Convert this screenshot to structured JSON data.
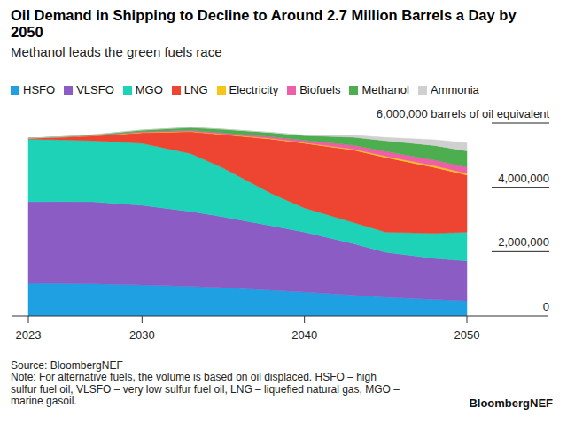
{
  "chart_data": {
    "type": "area",
    "stacked": true,
    "title": "Oil Demand in Shipping to Decline to Around 2.7 Million Barrels a Day by 2050",
    "subtitle": "Methanol leads the green fuels race",
    "source": "Source: BloombergNEF",
    "note": "Note: For alternative fuels, the volume is based on oil displaced. HSFO – high sulfur fuel oil, VLSFO – very low sulfur fuel oil, LNG – liquefied natural gas, MGO – marine gasoil.",
    "brand": "BloombergNEF",
    "x": [
      2023,
      2025,
      2027,
      2030,
      2033,
      2035,
      2038,
      2040,
      2043,
      2045,
      2048,
      2050
    ],
    "xlim": [
      2022,
      2055
    ],
    "xticks": [
      2023,
      2030,
      2040,
      2050
    ],
    "ylim": [
      0,
      6000000
    ],
    "yticks": [
      0,
      {
        "value": 2000000,
        "label": "2,000,000"
      },
      {
        "value": 4000000,
        "label": "4,000,000"
      },
      {
        "value": 6000000,
        "label": "6,000,000 barrels of oil equivalent"
      }
    ],
    "legend": "top",
    "series": [
      {
        "name": "HSFO",
        "color": "#1fa0e3",
        "values": [
          1020000,
          1010000,
          1000000,
          960000,
          920000,
          880000,
          800000,
          740000,
          650000,
          580000,
          510000,
          470000
        ]
      },
      {
        "name": "VLSFO",
        "color": "#8b5cc4",
        "values": [
          2530000,
          2550000,
          2550000,
          2480000,
          2330000,
          2200000,
          2000000,
          1870000,
          1600000,
          1400000,
          1280000,
          1240000
        ]
      },
      {
        "name": "MGO",
        "color": "#1ed2b8",
        "values": [
          1950000,
          1920000,
          1900000,
          1930000,
          1800000,
          1520000,
          1000000,
          750000,
          660000,
          630000,
          780000,
          900000
        ]
      },
      {
        "name": "LNG",
        "color": "#ee4432",
        "values": [
          30000,
          80000,
          150000,
          330000,
          680000,
          1040000,
          1700000,
          2010000,
          2250000,
          2320000,
          2050000,
          1770000
        ]
      },
      {
        "name": "Electricity",
        "color": "#f6c518",
        "values": [
          0,
          0,
          5000,
          10000,
          10000,
          15000,
          20000,
          20000,
          30000,
          40000,
          50000,
          50000
        ]
      },
      {
        "name": "Biofuels",
        "color": "#ee5fa7",
        "values": [
          0,
          5000,
          10000,
          20000,
          30000,
          40000,
          50000,
          70000,
          120000,
          150000,
          180000,
          200000
        ]
      },
      {
        "name": "Methanol",
        "color": "#4cae4f",
        "values": [
          0,
          10000,
          20000,
          50000,
          90000,
          110000,
          130000,
          150000,
          250000,
          330000,
          450000,
          500000
        ]
      },
      {
        "name": "Ammonia",
        "color": "#d0d0d0",
        "values": [
          0,
          0,
          0,
          0,
          0,
          0,
          10000,
          20000,
          60000,
          100000,
          180000,
          250000
        ]
      }
    ]
  }
}
